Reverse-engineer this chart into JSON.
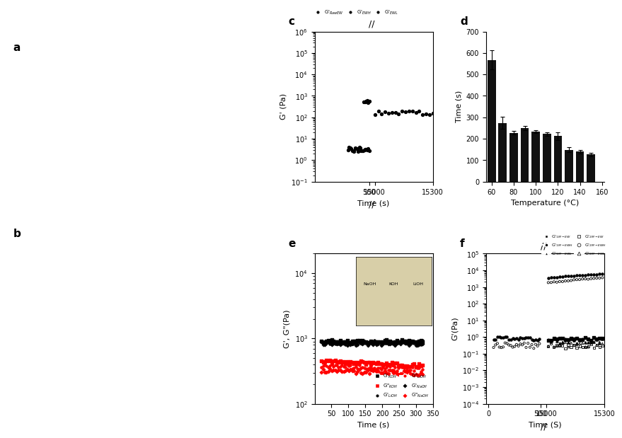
{
  "panel_d": {
    "temperatures": [
      60,
      70,
      80,
      90,
      100,
      110,
      120,
      130,
      140,
      150
    ],
    "times": [
      568,
      273,
      228,
      251,
      233,
      222,
      213,
      148,
      140,
      126
    ],
    "errors": [
      45,
      28,
      8,
      10,
      8,
      8,
      18,
      12,
      8,
      7
    ],
    "bar_color": "#111111",
    "ylabel": "Time (s)",
    "xlabel": "Temperature (°C)",
    "ylim": [
      0,
      700
    ],
    "yticks": [
      0,
      100,
      200,
      300,
      400,
      500,
      600,
      700
    ],
    "xlim": [
      55,
      162
    ],
    "xticks": [
      60,
      80,
      100,
      120,
      140,
      160
    ]
  },
  "background_color": "#ffffff",
  "label_fontsize": 11,
  "tick_fontsize": 7,
  "axis_label_fontsize": 8
}
